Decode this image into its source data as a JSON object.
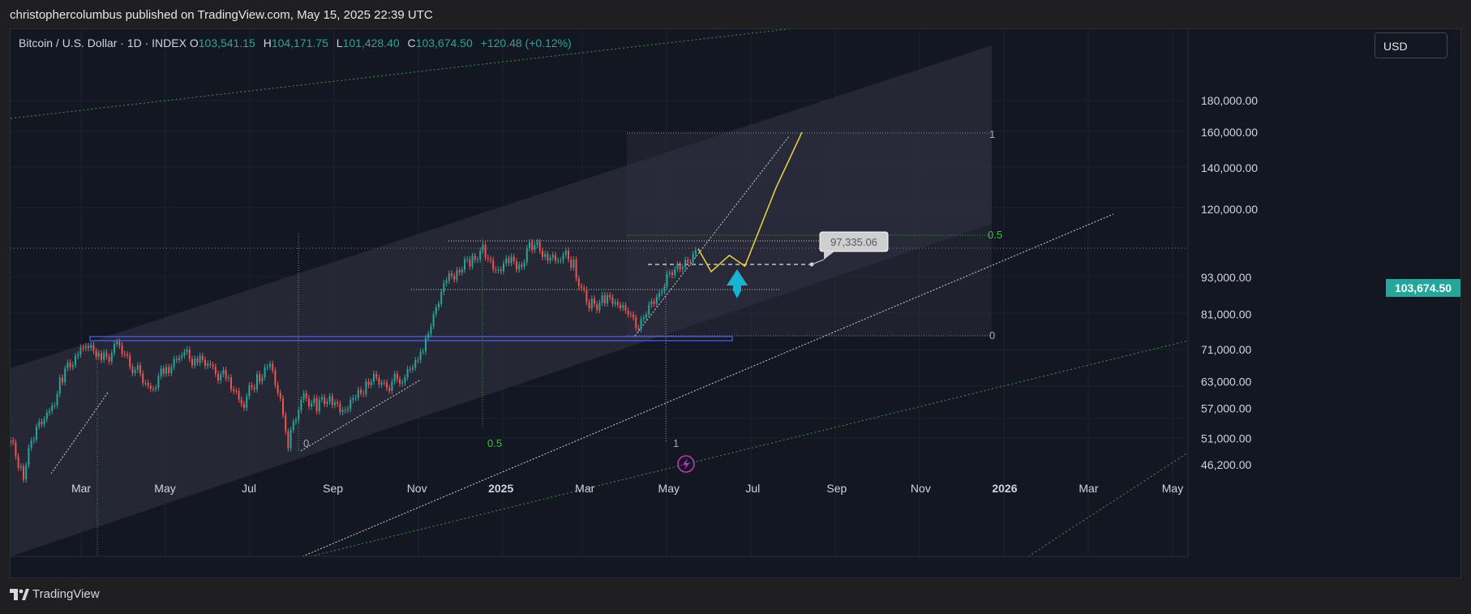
{
  "publish_bar": {
    "text": "christophercolumbus published on TradingView.com, May 15, 2025 22:39 UTC"
  },
  "legend": {
    "symbol": "Bitcoin / U.S. Dollar · 1D · INDEX",
    "open_label": "O",
    "open": "103,541.15",
    "high_label": "H",
    "high": "104,171.75",
    "low_label": "L",
    "low": "101,428.40",
    "close_label": "C",
    "close": "103,674.50",
    "change": "+120.48 (+0.12%)"
  },
  "currency_button": {
    "label": "USD"
  },
  "current_price_tag": {
    "label": "103,674.50"
  },
  "callout": {
    "label": "97,335.06"
  },
  "chart_data": {
    "type": "candlestick",
    "y_scale": "log",
    "y_axis_labels": [
      "180,000.00",
      "160,000.00",
      "140,000.00",
      "120,000.00",
      "93,000.00",
      "81,000.00",
      "71,000.00",
      "63,000.00",
      "57,000.00",
      "51,000.00",
      "46,200.00"
    ],
    "x_axis_labels": [
      "Mar",
      "May",
      "Jul",
      "Sep",
      "Nov",
      "2025",
      "Mar",
      "May",
      "Jul",
      "Sep",
      "Nov",
      "2026",
      "Mar",
      "May"
    ],
    "fib_right_labels": [
      "1",
      "0.5",
      "0"
    ],
    "fib_bottom_labels": [
      "0",
      "0.5",
      "1"
    ],
    "colors": {
      "up": "#26a69a",
      "down": "#ef5350",
      "channel_fill": "#2a2a38",
      "projection": "#f0d43a",
      "arrow": "#17b3d3",
      "support_box": "#4a62ff",
      "green_lines": "#3d9a3d"
    },
    "series_path": [
      [
        0,
        50000
      ],
      [
        10,
        45000
      ],
      [
        18,
        52000
      ],
      [
        30,
        56000
      ],
      [
        40,
        64000
      ],
      [
        52,
        70000
      ],
      [
        58,
        73500
      ],
      [
        70,
        68000
      ],
      [
        82,
        72000
      ],
      [
        96,
        66000
      ],
      [
        108,
        61000
      ],
      [
        120,
        66000
      ],
      [
        132,
        70000
      ],
      [
        144,
        68500
      ],
      [
        156,
        66000
      ],
      [
        168,
        63000
      ],
      [
        180,
        58000
      ],
      [
        190,
        64000
      ],
      [
        200,
        67000
      ],
      [
        208,
        58000
      ],
      [
        214,
        50000
      ],
      [
        226,
        60000
      ],
      [
        236,
        57000
      ],
      [
        246,
        60000
      ],
      [
        256,
        56000
      ],
      [
        266,
        59000
      ],
      [
        276,
        64000
      ],
      [
        290,
        62000
      ],
      [
        302,
        64000
      ],
      [
        312,
        68000
      ],
      [
        318,
        71000
      ],
      [
        326,
        80000
      ],
      [
        336,
        92000
      ],
      [
        346,
        97000
      ],
      [
        356,
        98000
      ],
      [
        364,
        104000
      ],
      [
        374,
        95000
      ],
      [
        384,
        98000
      ],
      [
        394,
        99000
      ],
      [
        402,
        106000
      ],
      [
        412,
        100000
      ],
      [
        424,
        101000
      ],
      [
        434,
        98000
      ],
      [
        440,
        88000
      ],
      [
        448,
        84000
      ],
      [
        458,
        86000
      ],
      [
        468,
        84000
      ],
      [
        476,
        82000
      ],
      [
        484,
        77500
      ],
      [
        492,
        84000
      ],
      [
        500,
        87000
      ],
      [
        508,
        94000
      ],
      [
        516,
        96000
      ],
      [
        524,
        99000
      ],
      [
        530,
        103500
      ]
    ],
    "projection_path": [
      [
        530,
        103500
      ],
      [
        540,
        95000
      ],
      [
        554,
        101000
      ],
      [
        566,
        97000
      ],
      [
        590,
        130000
      ],
      [
        610,
        160000
      ]
    ],
    "support_level": 74000,
    "mid_level": 89000,
    "top_level": 105000,
    "fib_1_level": 160000,
    "fib_05_level": 106000,
    "fib_0_level": 74500,
    "dashed_level": 97335.06
  }
}
